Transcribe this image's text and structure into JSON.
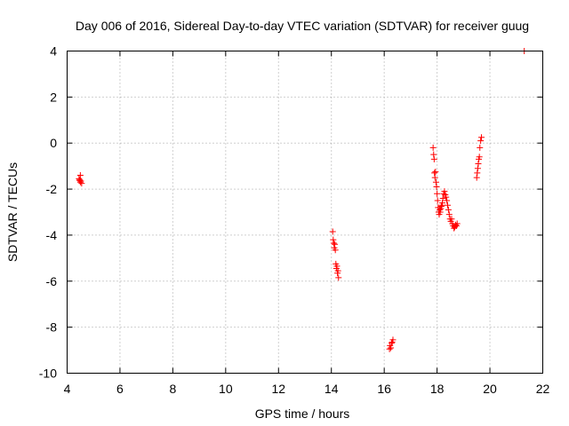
{
  "chart_data": {
    "type": "scatter",
    "title": "Day 006 of 2016, Sidereal Day-to-day VTEC variation (SDTVAR) for receiver guug",
    "xlabel": "GPS time / hours",
    "ylabel": "SDTVAR / TECUs",
    "xlim": [
      4,
      22
    ],
    "ylim": [
      -10,
      4
    ],
    "xticks": [
      "4",
      "6",
      "8",
      "10",
      "12",
      "14",
      "16",
      "18",
      "20",
      "22"
    ],
    "yticks": [
      "-10",
      "-8",
      "-6",
      "-4",
      "-2",
      "0",
      "2",
      "4"
    ],
    "grid": true,
    "marker": "plus",
    "series": [
      {
        "name": "SDTVAR",
        "color": "#ff0000",
        "points": [
          [
            4.45,
            -1.55
          ],
          [
            4.47,
            -1.62
          ],
          [
            4.5,
            -1.7
          ],
          [
            4.5,
            -1.4
          ],
          [
            4.52,
            -1.65
          ],
          [
            4.55,
            -1.75
          ],
          [
            4.48,
            -1.6
          ],
          [
            14.05,
            -3.85
          ],
          [
            14.07,
            -4.2
          ],
          [
            14.09,
            -4.35
          ],
          [
            14.11,
            -4.55
          ],
          [
            14.13,
            -4.4
          ],
          [
            14.15,
            -4.65
          ],
          [
            14.17,
            -5.25
          ],
          [
            14.19,
            -5.45
          ],
          [
            14.21,
            -5.35
          ],
          [
            14.23,
            -5.65
          ],
          [
            14.25,
            -5.55
          ],
          [
            14.27,
            -5.85
          ],
          [
            16.2,
            -8.95
          ],
          [
            16.22,
            -8.8
          ],
          [
            16.25,
            -8.9
          ],
          [
            16.28,
            -8.7
          ],
          [
            16.3,
            -8.65
          ],
          [
            16.33,
            -8.55
          ],
          [
            17.85,
            -0.2
          ],
          [
            17.87,
            -0.5
          ],
          [
            17.89,
            -0.7
          ],
          [
            17.9,
            -1.3
          ],
          [
            17.92,
            -1.5
          ],
          [
            17.94,
            -1.25
          ],
          [
            17.96,
            -1.7
          ],
          [
            17.98,
            -1.9
          ],
          [
            18.0,
            -2.2
          ],
          [
            18.02,
            -2.5
          ],
          [
            18.04,
            -2.8
          ],
          [
            18.06,
            -3.0
          ],
          [
            18.08,
            -3.1
          ],
          [
            18.1,
            -2.9
          ],
          [
            18.12,
            -3.0
          ],
          [
            18.14,
            -2.85
          ],
          [
            18.16,
            -2.75
          ],
          [
            18.18,
            -2.7
          ],
          [
            18.2,
            -2.6
          ],
          [
            18.22,
            -2.4
          ],
          [
            18.25,
            -2.2
          ],
          [
            18.28,
            -2.1
          ],
          [
            18.31,
            -2.25
          ],
          [
            18.34,
            -2.35
          ],
          [
            18.37,
            -2.5
          ],
          [
            18.4,
            -2.7
          ],
          [
            18.43,
            -2.9
          ],
          [
            18.46,
            -3.1
          ],
          [
            18.49,
            -3.3
          ],
          [
            18.52,
            -3.4
          ],
          [
            18.55,
            -3.3
          ],
          [
            18.58,
            -3.5
          ],
          [
            18.61,
            -3.6
          ],
          [
            18.64,
            -3.7
          ],
          [
            18.67,
            -3.65
          ],
          [
            18.7,
            -3.55
          ],
          [
            18.73,
            -3.6
          ],
          [
            18.76,
            -3.5
          ],
          [
            19.5,
            -1.5
          ],
          [
            19.52,
            -1.3
          ],
          [
            19.54,
            -1.1
          ],
          [
            19.56,
            -0.9
          ],
          [
            19.58,
            -0.7
          ],
          [
            19.6,
            -0.6
          ],
          [
            19.62,
            -0.2
          ],
          [
            19.65,
            0.1
          ],
          [
            19.68,
            0.25
          ],
          [
            21.3,
            4.0
          ]
        ]
      }
    ]
  }
}
